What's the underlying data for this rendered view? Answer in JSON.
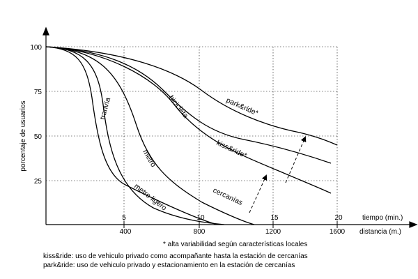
{
  "chart_data": {
    "type": "line",
    "ylabel": "porcentaje de usuarios",
    "xlabel_time": "tiempo (min.)",
    "xlabel_distance": "distancia (m.)",
    "ylim": [
      0,
      100
    ],
    "xlim_time": [
      0,
      20
    ],
    "y_ticks": [
      "100",
      "75",
      "50",
      "25"
    ],
    "x_time_ticks": [
      "5",
      "10",
      "15",
      "20"
    ],
    "x_distance_ticks": [
      "400",
      "800",
      "1200",
      "1600"
    ],
    "grid": true,
    "series": [
      {
        "name": "tranvía",
        "x": [
          0,
          1,
          2,
          2.8,
          3.5,
          4.2,
          5,
          6,
          7,
          8,
          9,
          10
        ],
        "y": [
          100,
          97,
          87,
          70,
          42,
          22,
          14,
          8,
          4,
          2,
          1,
          0
        ]
      },
      {
        "name": "metro",
        "x": [
          0,
          2,
          3,
          4,
          5,
          6,
          7,
          8,
          9,
          10,
          11,
          12.5
        ],
        "y": [
          100,
          96,
          87,
          74,
          55,
          36,
          23,
          14,
          8,
          4,
          2,
          0
        ]
      },
      {
        "name": "bicicleta",
        "x": [
          0,
          2,
          4,
          6,
          8,
          10,
          12,
          14,
          16,
          18,
          19.5
        ],
        "y": [
          100,
          98,
          93,
          83,
          66,
          49,
          37,
          29,
          23,
          18,
          14
        ]
      },
      {
        "name": "park&ride*",
        "x": [
          0,
          3,
          6,
          8,
          10,
          12,
          14,
          16,
          18,
          19.5
        ],
        "y": [
          100,
          98,
          92,
          84,
          75,
          67,
          60,
          54,
          49,
          46
        ]
      }
    ],
    "curve_labels": [
      "tranvía",
      "metro",
      "metro ligero",
      "bicicleta",
      "park&ride*",
      "kiss&ride*",
      "cercanías"
    ]
  },
  "footnote": "* alta variabilidad según características locales",
  "definitions": [
    "kiss&ride: uso de vehiculo privado como acompañante hasta la estación de cercanías",
    "park&ride: uso de vehiculo privado y estacionamiento en la estación de cercanías"
  ]
}
